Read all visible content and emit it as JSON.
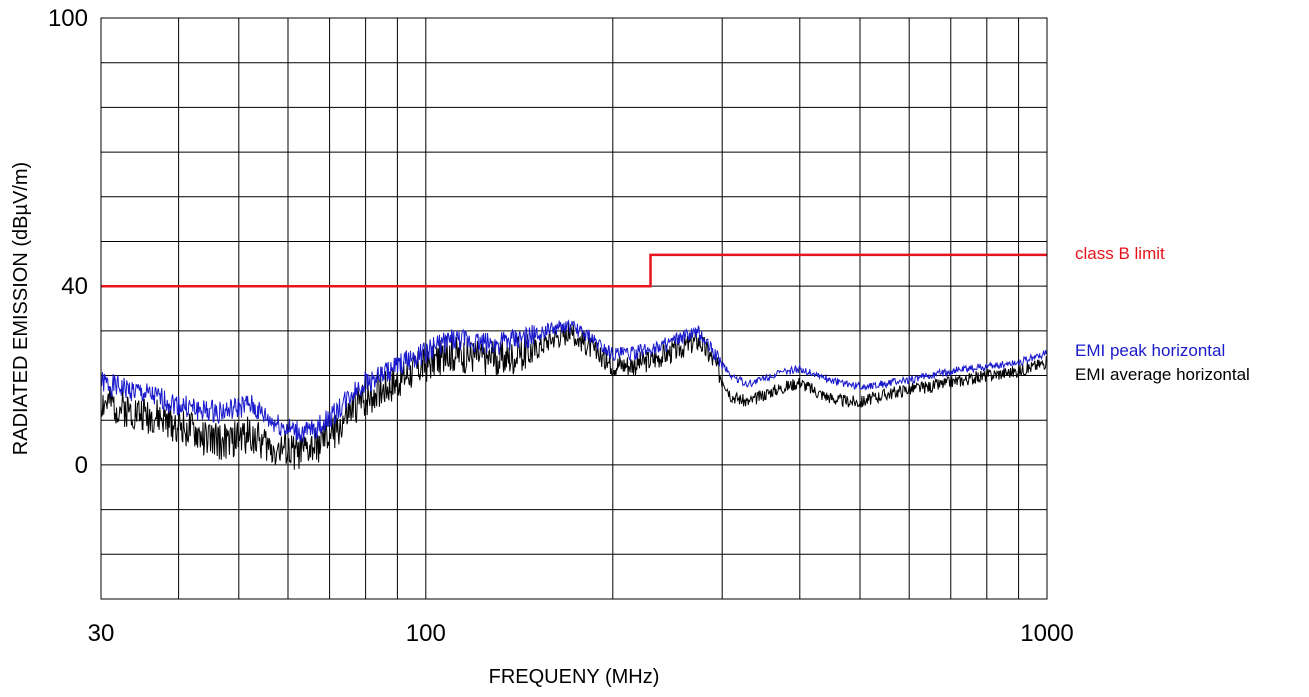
{
  "chart_data": {
    "type": "line",
    "xlabel": "FREQUENY (MHz)",
    "ylabel": "RADIATED EMISSION (dBµV/m)",
    "x_scale": "log",
    "xlim": [
      30,
      1000
    ],
    "ylim": [
      -30,
      100
    ],
    "x_ticks": [
      30,
      100,
      1000
    ],
    "x_tick_labels": [
      "30",
      "100",
      "1000"
    ],
    "y_ticks": [
      0,
      40,
      100
    ],
    "y_tick_labels": [
      "0",
      "40",
      "100"
    ],
    "grid": true,
    "legend_position": "right",
    "series": [
      {
        "name": "class B limit",
        "color": "#e8141c",
        "x": [
          30,
          230,
          230,
          1000
        ],
        "y": [
          40,
          40,
          47,
          47
        ]
      },
      {
        "name": "EMI peak horizontal",
        "color": "#1a1acc",
        "x": [
          30,
          33,
          36,
          40,
          44,
          48,
          52,
          56,
          60,
          64,
          68,
          72,
          76,
          80,
          85,
          90,
          95,
          100,
          105,
          110,
          120,
          130,
          140,
          150,
          160,
          170,
          180,
          190,
          200,
          215,
          230,
          250,
          265,
          275,
          290,
          310,
          330,
          360,
          400,
          430,
          460,
          500,
          540,
          600,
          650,
          700,
          800,
          900,
          1000
        ],
        "y": [
          18.5,
          17,
          15.5,
          13.5,
          12,
          12,
          13.5,
          10,
          8,
          7,
          9,
          12,
          16,
          18.5,
          20,
          22,
          24,
          25,
          27,
          28,
          27.5,
          27,
          28,
          29,
          30.5,
          31,
          29.5,
          27,
          25,
          25,
          26,
          27.5,
          29,
          29.5,
          25.5,
          20,
          18,
          20,
          21.5,
          20,
          18.5,
          17.5,
          18,
          19,
          20,
          21,
          22,
          23,
          25
        ]
      },
      {
        "name": "EMI average horizontal",
        "color": "#000000",
        "x": [
          30,
          33,
          36,
          40,
          44,
          48,
          52,
          56,
          60,
          64,
          68,
          72,
          76,
          80,
          85,
          90,
          95,
          100,
          105,
          110,
          120,
          130,
          140,
          150,
          160,
          170,
          180,
          190,
          200,
          215,
          230,
          250,
          265,
          275,
          290,
          310,
          330,
          360,
          400,
          430,
          460,
          500,
          540,
          600,
          650,
          700,
          800,
          900,
          1000
        ],
        "y": [
          14,
          12.5,
          11,
          9,
          6,
          5,
          7,
          4,
          3,
          3,
          5,
          8,
          12,
          15,
          17,
          19,
          21,
          22.5,
          24,
          25,
          24.5,
          23.5,
          24.5,
          26,
          28.5,
          29.5,
          27.5,
          24.5,
          22.5,
          22.5,
          23.5,
          25.5,
          27,
          28,
          23.5,
          15.5,
          14,
          16.5,
          18.5,
          16,
          14.5,
          14,
          15.5,
          17,
          17.5,
          18.5,
          20,
          21,
          23
        ]
      }
    ]
  }
}
